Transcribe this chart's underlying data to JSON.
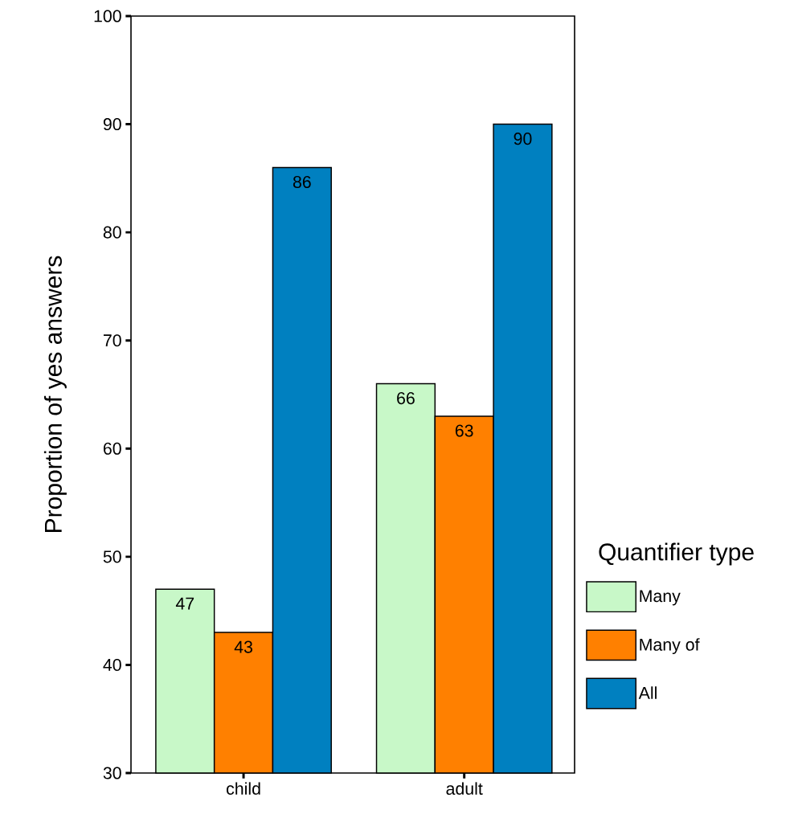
{
  "chart_data": {
    "type": "bar",
    "ylabel": "Proportion of yes answers",
    "legend_title": "Quantifier type",
    "categories": [
      "child",
      "adult"
    ],
    "series": [
      {
        "name": "Many",
        "color": "#c8f8c8",
        "values": [
          47,
          66
        ]
      },
      {
        "name": "Many of",
        "color": "#ff8000",
        "values": [
          43,
          63
        ]
      },
      {
        "name": "All",
        "color": "#0080c0",
        "values": [
          86,
          90
        ]
      }
    ],
    "ylim": [
      30,
      100
    ],
    "yticks": [
      30,
      40,
      50,
      60,
      70,
      80,
      90,
      100
    ],
    "data_labels": true,
    "legend": "right",
    "grid": false
  }
}
